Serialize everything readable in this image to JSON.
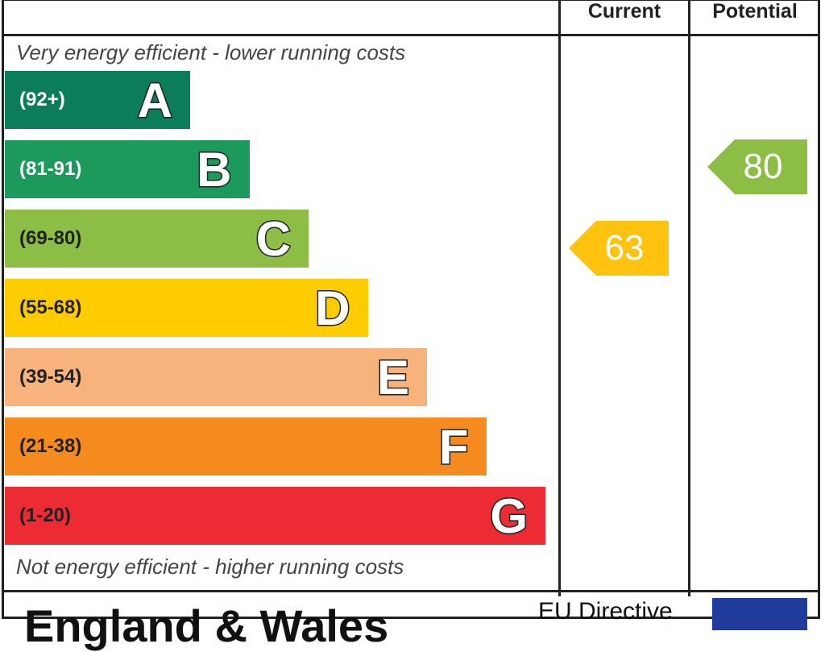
{
  "columns": {
    "current": "Current",
    "potential": "Potential"
  },
  "notes": {
    "top": "Very energy efficient - lower running costs",
    "bottom": "Not energy efficient - higher running costs"
  },
  "footer": {
    "region": "England & Wales",
    "directive": "EU Directive"
  },
  "chart_data": {
    "type": "bar",
    "categories": [
      "A",
      "B",
      "C",
      "D",
      "E",
      "F",
      "G"
    ],
    "ranges": [
      "(92+)",
      "(81-91)",
      "(69-80)",
      "(55-68)",
      "(39-54)",
      "(21-38)",
      "(1-20)"
    ],
    "colors": [
      "#0b7d5a",
      "#1b9a5c",
      "#8cbd45",
      "#ffcc00",
      "#f8b27c",
      "#f58a1f",
      "#ec2b34"
    ],
    "range_text_colors": [
      "#ffffff",
      "#ffffff",
      "#222222",
      "#222222",
      "#222222",
      "#222222",
      "#222222"
    ],
    "current": {
      "value": 63,
      "band": "D",
      "color": "#ffc20e"
    },
    "potential": {
      "value": 80,
      "band": "C",
      "color": "#8cbd45"
    }
  }
}
